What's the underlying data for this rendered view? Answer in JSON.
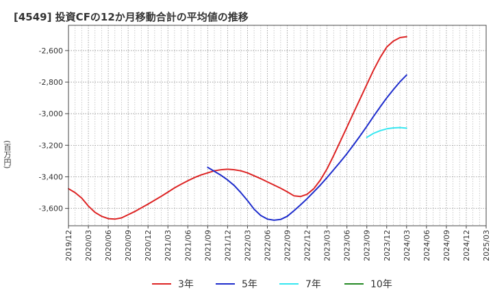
{
  "chart_data": {
    "type": "line",
    "title": "[4549]  投資CFの12か月移動合計の平均値の推移",
    "ylabel": "(百万円)",
    "ylim": [
      -3710,
      -2440
    ],
    "yticks": [
      -2600,
      -2800,
      -3000,
      -3200,
      -3400,
      -3600
    ],
    "ytick_labels": [
      "-2,600",
      "-2,800",
      "-3,000",
      "-3,200",
      "-3,400",
      "-3,600"
    ],
    "xticks": [
      "2019/12",
      "2020/03",
      "2020/06",
      "2020/09",
      "2020/12",
      "2021/03",
      "2021/06",
      "2021/09",
      "2021/12",
      "2022/03",
      "2022/06",
      "2022/09",
      "2022/12",
      "2023/03",
      "2023/06",
      "2023/09",
      "2023/12",
      "2024/03",
      "2024/06",
      "2024/09",
      "2024/12",
      "2025/03"
    ],
    "grid": true,
    "legend_position": "bottom",
    "series": [
      {
        "name": "3年",
        "color": "#dd2222",
        "x": [
          "2019/12",
          "2020/01",
          "2020/02",
          "2020/03",
          "2020/04",
          "2020/05",
          "2020/06",
          "2020/07",
          "2020/08",
          "2020/09",
          "2020/10",
          "2020/11",
          "2020/12",
          "2021/01",
          "2021/02",
          "2021/03",
          "2021/04",
          "2021/05",
          "2021/06",
          "2021/07",
          "2021/08",
          "2021/09",
          "2021/10",
          "2021/11",
          "2021/12",
          "2022/01",
          "2022/02",
          "2022/03",
          "2022/04",
          "2022/05",
          "2022/06",
          "2022/07",
          "2022/08",
          "2022/09",
          "2022/10",
          "2022/11",
          "2022/12",
          "2023/01",
          "2023/02",
          "2023/03",
          "2023/04",
          "2023/05",
          "2023/06",
          "2023/07",
          "2023/08",
          "2023/09",
          "2023/10",
          "2023/11",
          "2023/12",
          "2024/01",
          "2024/02",
          "2024/03"
        ],
        "values": [
          -3475,
          -3500,
          -3535,
          -3585,
          -3625,
          -3650,
          -3665,
          -3668,
          -3660,
          -3640,
          -3620,
          -3596,
          -3573,
          -3548,
          -3523,
          -3497,
          -3470,
          -3447,
          -3425,
          -3405,
          -3388,
          -3375,
          -3362,
          -3355,
          -3352,
          -3355,
          -3362,
          -3375,
          -3393,
          -3412,
          -3432,
          -3452,
          -3472,
          -3495,
          -3520,
          -3525,
          -3510,
          -3475,
          -3420,
          -3350,
          -3265,
          -3175,
          -3085,
          -2995,
          -2905,
          -2815,
          -2725,
          -2645,
          -2578,
          -2540,
          -2518,
          -2512
        ]
      },
      {
        "name": "5年",
        "color": "#1c2bcc",
        "x": [
          "2021/09",
          "2021/10",
          "2021/11",
          "2021/12",
          "2022/01",
          "2022/02",
          "2022/03",
          "2022/04",
          "2022/05",
          "2022/06",
          "2022/07",
          "2022/08",
          "2022/09",
          "2022/10",
          "2022/11",
          "2022/12",
          "2023/01",
          "2023/02",
          "2023/03",
          "2023/04",
          "2023/05",
          "2023/06",
          "2023/07",
          "2023/08",
          "2023/09",
          "2023/10",
          "2023/11",
          "2023/12",
          "2024/01",
          "2024/02",
          "2024/03"
        ],
        "values": [
          -3340,
          -3365,
          -3390,
          -3420,
          -3455,
          -3500,
          -3550,
          -3605,
          -3645,
          -3668,
          -3675,
          -3670,
          -3650,
          -3615,
          -3578,
          -3538,
          -3495,
          -3452,
          -3405,
          -3355,
          -3305,
          -3253,
          -3198,
          -3140,
          -3080,
          -3018,
          -2958,
          -2900,
          -2848,
          -2798,
          -2755
        ]
      },
      {
        "name": "7年",
        "color": "#33e6f0",
        "x": [
          "2023/09",
          "2023/10",
          "2023/11",
          "2023/12",
          "2024/01",
          "2024/02",
          "2024/03"
        ],
        "values": [
          -3150,
          -3125,
          -3108,
          -3096,
          -3090,
          -3088,
          -3092
        ]
      },
      {
        "name": "10年",
        "color": "#228822",
        "x": [],
        "values": []
      }
    ]
  }
}
